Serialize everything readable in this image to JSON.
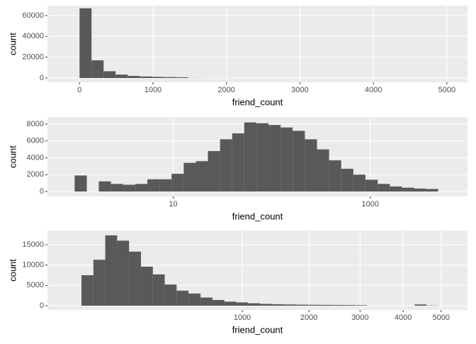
{
  "chart_data": [
    {
      "type": "histogram",
      "xscale": "linear",
      "xlabel": "friend_count",
      "ylabel": "count",
      "color": "#595959",
      "grid": true,
      "bins": [
        0,
        164,
        328,
        492,
        656,
        820,
        984,
        1148,
        1312,
        1476,
        1640,
        1804,
        1968,
        2132,
        2296,
        2460,
        2624,
        2788,
        2952,
        3116,
        3280,
        3444,
        3608,
        3772,
        3936,
        4100,
        4264,
        4428,
        4592,
        4756,
        4920
      ],
      "counts": [
        67000,
        17000,
        6500,
        3300,
        2000,
        1500,
        1100,
        900,
        700,
        120,
        60,
        40,
        30,
        25,
        20,
        15,
        12,
        10,
        8,
        6,
        5,
        4,
        3,
        3,
        2,
        2,
        2,
        1,
        1,
        1
      ],
      "xlim": [
        -436,
        5281
      ],
      "xticks": [
        0,
        1000,
        2000,
        3000,
        4000,
        5000
      ],
      "ylim": [
        -4100,
        69500
      ],
      "yticks": [
        0,
        20000,
        40000,
        60000
      ]
    },
    {
      "type": "histogram",
      "xscale": "log10",
      "xlabel": "friend_count",
      "ylabel": "count",
      "color": "#595959",
      "grid": true,
      "bins": [
        1,
        1.33,
        1.76,
        2.34,
        3.1,
        4.12,
        5.47,
        7.26,
        9.63,
        12.8,
        17,
        22.5,
        29.9,
        39.7,
        52.6,
        69.8,
        92.7,
        123,
        163,
        217,
        288,
        382,
        507,
        673,
        893,
        1190,
        1580,
        2090,
        2780,
        3690,
        4890
      ],
      "counts": [
        1900,
        0,
        1200,
        900,
        800,
        900,
        1450,
        1450,
        2100,
        3400,
        3600,
        4800,
        6200,
        6900,
        8200,
        8100,
        7900,
        7600,
        7200,
        6200,
        5000,
        3700,
        2700,
        2000,
        1400,
        900,
        600,
        450,
        350,
        300
      ],
      "xlim": [
        0.53,
        9700
      ],
      "xticks": [
        10,
        1000
      ],
      "ylim": [
        -590,
        8840
      ],
      "yticks": [
        0,
        2000,
        4000,
        6000,
        8000
      ]
    },
    {
      "type": "histogram",
      "xscale": "sqrt",
      "xlabel": "friend_count",
      "ylabel": "count",
      "color": "#595959",
      "grid": true,
      "bins": [
        0,
        5.5,
        21.9,
        49.3,
        87.6,
        137,
        197,
        268,
        350,
        443,
        548,
        663,
        789,
        926,
        1070,
        1230,
        1400,
        1580,
        1770,
        1980,
        2190,
        2410,
        2650,
        2900,
        3150,
        3420,
        3700,
        3990,
        4290,
        4600,
        4930
      ],
      "counts": [
        7500,
        11300,
        17300,
        16000,
        13300,
        9600,
        7700,
        5200,
        3700,
        3000,
        2000,
        1400,
        1000,
        800,
        600,
        450,
        350,
        300,
        250,
        220,
        200,
        180,
        150,
        120,
        0,
        0,
        0,
        0,
        300,
        50
      ],
      "xlim": [
        0,
        5760
      ],
      "xticks": [
        1000,
        2000,
        3000,
        4000,
        5000
      ],
      "ylim": [
        -1050,
        18500
      ],
      "yticks": [
        0,
        5000,
        10000,
        15000
      ]
    }
  ]
}
